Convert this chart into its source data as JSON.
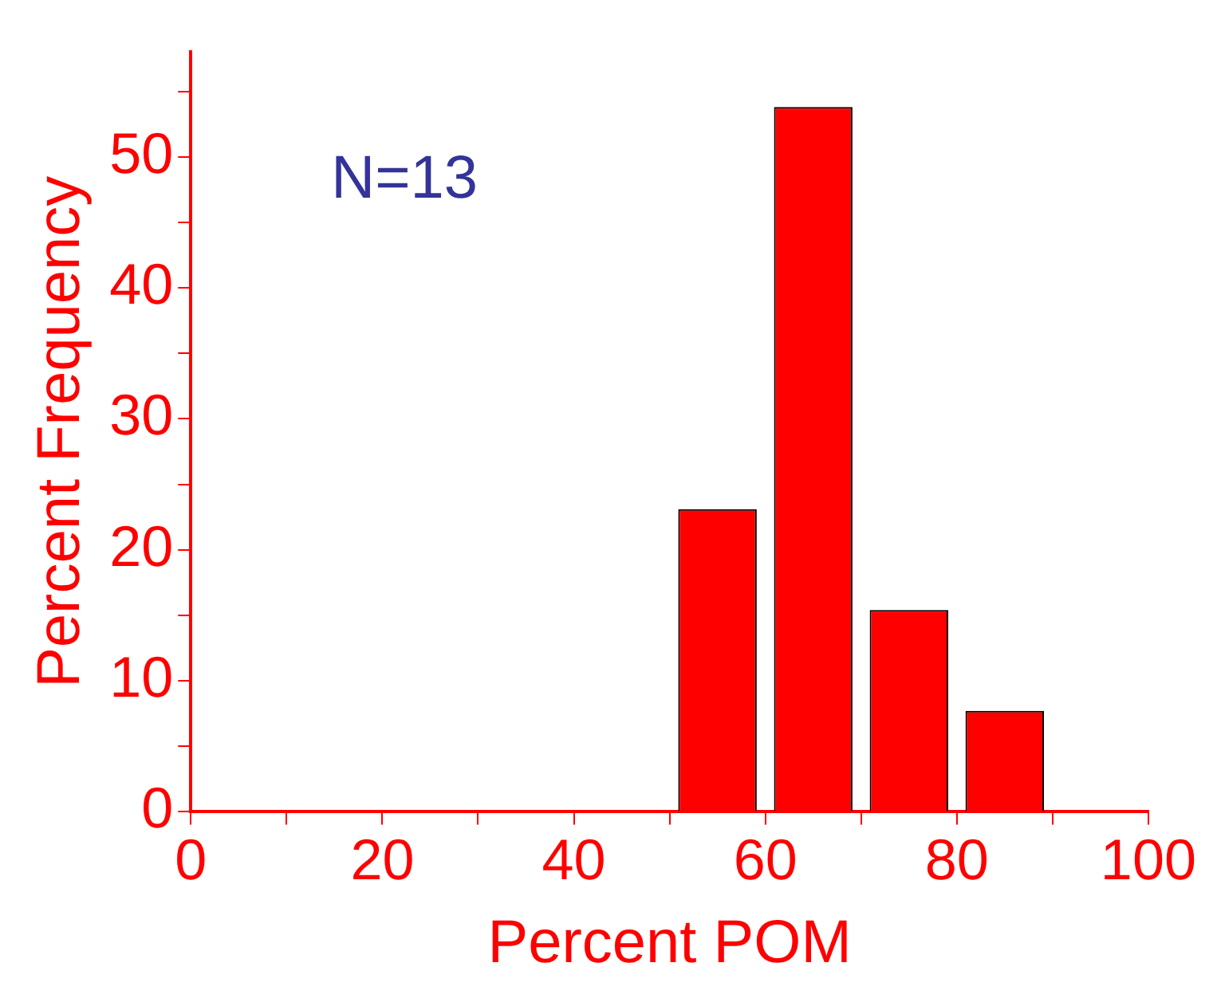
{
  "chart_data": {
    "type": "histogram",
    "xlabel": "Percent POM",
    "ylabel": "Percent Frequency",
    "bins": [
      50,
      60,
      70,
      80,
      90
    ],
    "values": [
      23.1,
      53.8,
      15.4,
      7.7
    ],
    "color": "#ff0000",
    "xlim": [
      0,
      100
    ],
    "xticks": [
      0,
      {
        "value": 10,
        "label": null
      },
      20,
      {
        "value": 30,
        "label": null
      },
      40,
      {
        "value": 50,
        "label": null
      },
      60,
      {
        "value": 70,
        "label": null
      },
      80,
      {
        "value": 90,
        "label": null
      },
      100
    ],
    "ylim": [
      0,
      58
    ],
    "yticks": [
      0,
      {
        "value": 5,
        "label": null
      },
      10,
      {
        "value": 15,
        "label": null
      },
      20,
      {
        "value": 25,
        "label": null
      },
      30,
      {
        "value": 35,
        "label": null
      },
      40,
      {
        "value": 45,
        "label": null
      },
      50,
      {
        "value": 55,
        "label": null
      }
    ],
    "annotations": [
      "N=13"
    ],
    "grid": false,
    "legend": false
  }
}
